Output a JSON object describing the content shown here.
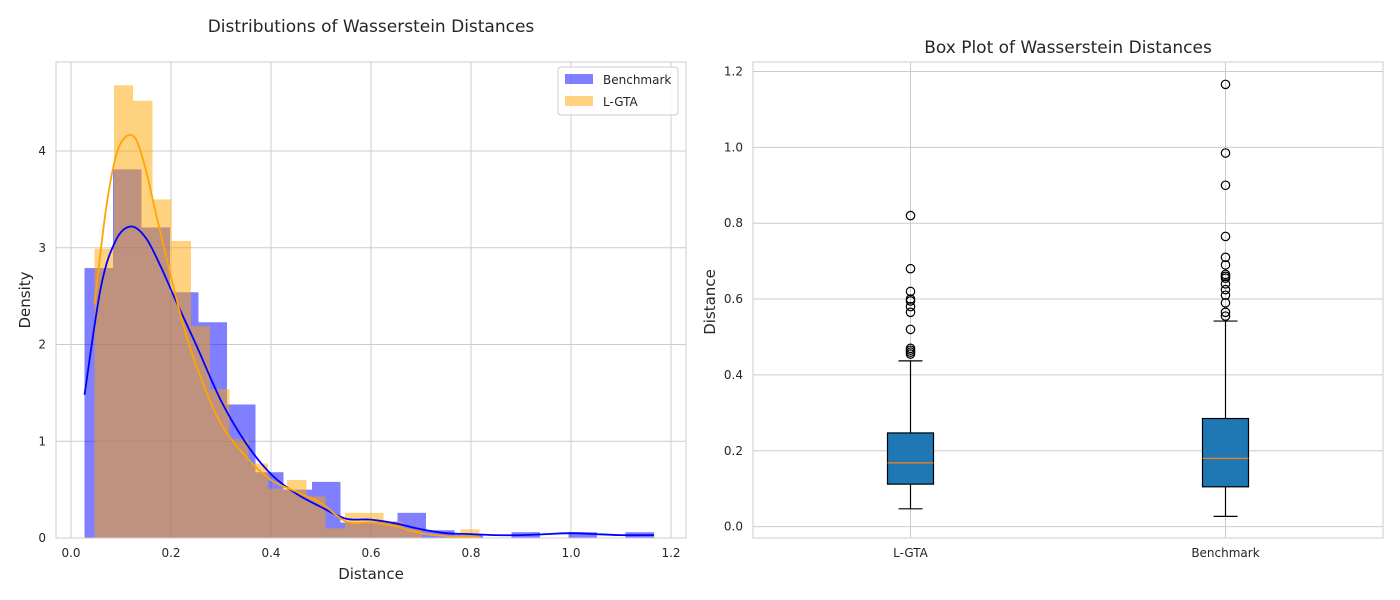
{
  "chart_data": [
    {
      "type": "histogram",
      "title": "Distributions of Wasserstein Distances",
      "xlabel": "Distance",
      "ylabel": "Density",
      "xlim": [
        -0.03,
        1.23
      ],
      "ylim": [
        0,
        4.92
      ],
      "xticks": [
        0.0,
        0.2,
        0.4,
        0.6,
        0.8,
        1.0,
        1.2
      ],
      "xtick_labels": [
        "0.0",
        "0.2",
        "0.4",
        "0.6",
        "0.8",
        "1.0",
        "1.2"
      ],
      "yticks": [
        0,
        1,
        2,
        3,
        4
      ],
      "ytick_labels": [
        "0",
        "1",
        "2",
        "3",
        "4"
      ],
      "grid": true,
      "legend": "top-right",
      "series": [
        {
          "name": "Benchmark",
          "color": "#0000ff",
          "alpha": 0.5,
          "bins": [
            {
              "x0": 0.027,
              "x1": 0.084,
              "density": 2.79
            },
            {
              "x0": 0.084,
              "x1": 0.141,
              "density": 3.81
            },
            {
              "x0": 0.141,
              "x1": 0.198,
              "density": 3.21
            },
            {
              "x0": 0.198,
              "x1": 0.255,
              "density": 2.54
            },
            {
              "x0": 0.255,
              "x1": 0.312,
              "density": 2.23
            },
            {
              "x0": 0.312,
              "x1": 0.369,
              "density": 1.38
            },
            {
              "x0": 0.369,
              "x1": 0.425,
              "density": 0.68
            },
            {
              "x0": 0.425,
              "x1": 0.482,
              "density": 0.5
            },
            {
              "x0": 0.482,
              "x1": 0.539,
              "density": 0.58
            },
            {
              "x0": 0.539,
              "x1": 0.596,
              "density": 0.16
            },
            {
              "x0": 0.596,
              "x1": 0.653,
              "density": 0.17
            },
            {
              "x0": 0.653,
              "x1": 0.71,
              "density": 0.26
            },
            {
              "x0": 0.71,
              "x1": 0.767,
              "density": 0.08
            },
            {
              "x0": 0.767,
              "x1": 0.824,
              "density": 0.03
            },
            {
              "x0": 0.824,
              "x1": 0.881,
              "density": 0.0
            },
            {
              "x0": 0.881,
              "x1": 0.938,
              "density": 0.06
            },
            {
              "x0": 0.938,
              "x1": 0.995,
              "density": 0.0
            },
            {
              "x0": 0.995,
              "x1": 1.052,
              "density": 0.06
            },
            {
              "x0": 1.052,
              "x1": 1.109,
              "density": 0.0
            },
            {
              "x0": 1.109,
              "x1": 1.166,
              "density": 0.06
            }
          ],
          "kde": {
            "x": [
              0.027,
              0.06,
              0.09,
              0.12,
              0.15,
              0.18,
              0.21,
              0.25,
              0.3,
              0.35,
              0.4,
              0.45,
              0.5,
              0.55,
              0.6,
              0.65,
              0.7,
              0.75,
              0.8,
              0.85,
              0.9,
              0.95,
              1.0,
              1.05,
              1.1,
              1.166
            ],
            "y": [
              1.48,
              2.6,
              3.08,
              3.22,
              3.1,
              2.8,
              2.45,
              2.0,
              1.42,
              0.98,
              0.66,
              0.46,
              0.32,
              0.2,
              0.19,
              0.15,
              0.09,
              0.05,
              0.04,
              0.03,
              0.03,
              0.04,
              0.05,
              0.04,
              0.03,
              0.03
            ]
          }
        },
        {
          "name": "L-GTA",
          "color": "#ffa500",
          "alpha": 0.5,
          "bins": [
            {
              "x0": 0.047,
              "x1": 0.086,
              "density": 2.99
            },
            {
              "x0": 0.086,
              "x1": 0.124,
              "density": 4.68
            },
            {
              "x0": 0.124,
              "x1": 0.163,
              "density": 4.52
            },
            {
              "x0": 0.163,
              "x1": 0.201,
              "density": 3.5
            },
            {
              "x0": 0.201,
              "x1": 0.24,
              "density": 3.07
            },
            {
              "x0": 0.24,
              "x1": 0.278,
              "density": 2.19
            },
            {
              "x0": 0.278,
              "x1": 0.317,
              "density": 1.54
            },
            {
              "x0": 0.317,
              "x1": 0.355,
              "density": 1.02
            },
            {
              "x0": 0.355,
              "x1": 0.394,
              "density": 0.77
            },
            {
              "x0": 0.394,
              "x1": 0.432,
              "density": 0.51
            },
            {
              "x0": 0.432,
              "x1": 0.471,
              "density": 0.6
            },
            {
              "x0": 0.471,
              "x1": 0.509,
              "density": 0.43
            },
            {
              "x0": 0.509,
              "x1": 0.548,
              "density": 0.1
            },
            {
              "x0": 0.548,
              "x1": 0.586,
              "density": 0.26
            },
            {
              "x0": 0.586,
              "x1": 0.625,
              "density": 0.26
            },
            {
              "x0": 0.625,
              "x1": 0.663,
              "density": 0.17
            },
            {
              "x0": 0.663,
              "x1": 0.702,
              "density": 0.09
            },
            {
              "x0": 0.702,
              "x1": 0.74,
              "density": 0.0
            },
            {
              "x0": 0.74,
              "x1": 0.779,
              "density": 0.0
            },
            {
              "x0": 0.779,
              "x1": 0.817,
              "density": 0.09
            }
          ],
          "kde": {
            "x": [
              0.047,
              0.07,
              0.09,
              0.11,
              0.13,
              0.15,
              0.17,
              0.2,
              0.23,
              0.26,
              0.3,
              0.35,
              0.4,
              0.45,
              0.5,
              0.55,
              0.6,
              0.65,
              0.7,
              0.75,
              0.8,
              0.817
            ],
            "y": [
              2.42,
              3.4,
              3.95,
              4.15,
              4.12,
              3.8,
              3.35,
              2.7,
              2.1,
              1.65,
              1.18,
              0.84,
              0.6,
              0.48,
              0.36,
              0.17,
              0.16,
              0.12,
              0.05,
              0.02,
              0.01,
              0.01
            ]
          }
        }
      ]
    },
    {
      "type": "box",
      "title": "Box Plot of Wasserstein Distances",
      "xlabel": "",
      "ylabel": "Distance",
      "ylim": [
        -0.03,
        1.225
      ],
      "yticks": [
        0.0,
        0.2,
        0.4,
        0.6,
        0.8,
        1.0,
        1.2
      ],
      "ytick_labels": [
        "0.0",
        "0.2",
        "0.4",
        "0.6",
        "0.8",
        "1.0",
        "1.2"
      ],
      "categories": [
        "L-GTA",
        "Benchmark"
      ],
      "grid": true,
      "box_color": "#1f77b4",
      "median_color": "#ff7f0e",
      "boxes": [
        {
          "name": "L-GTA",
          "whisker_low": 0.047,
          "q1": 0.112,
          "median": 0.168,
          "q3": 0.247,
          "whisker_high": 0.437,
          "outliers": [
            0.455,
            0.46,
            0.465,
            0.47,
            0.52,
            0.565,
            0.58,
            0.595,
            0.6,
            0.62,
            0.68,
            0.82
          ]
        },
        {
          "name": "Benchmark",
          "whisker_low": 0.027,
          "q1": 0.105,
          "median": 0.18,
          "q3": 0.285,
          "whisker_high": 0.542,
          "outliers": [
            0.555,
            0.565,
            0.59,
            0.61,
            0.625,
            0.64,
            0.655,
            0.66,
            0.665,
            0.69,
            0.71,
            0.765,
            0.9,
            0.985,
            1.166
          ]
        }
      ]
    }
  ]
}
